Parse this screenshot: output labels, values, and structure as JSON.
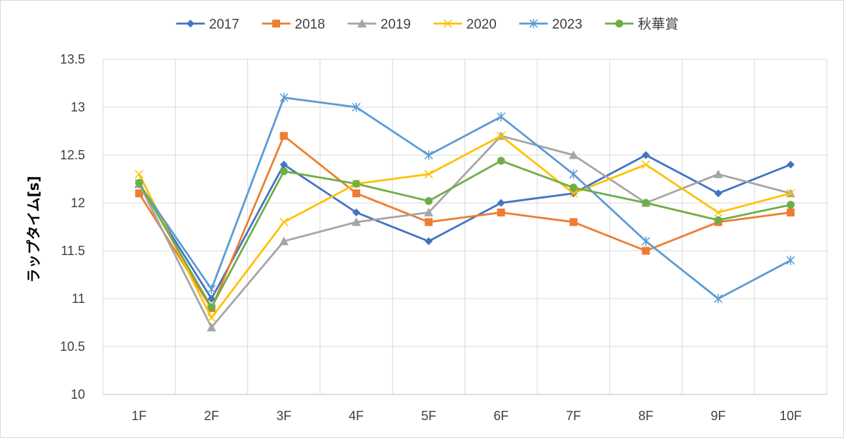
{
  "chart_data": {
    "type": "line",
    "title": "",
    "xlabel": "",
    "ylabel": "ラップタイム[s]",
    "categories": [
      "1F",
      "2F",
      "3F",
      "4F",
      "5F",
      "6F",
      "7F",
      "8F",
      "9F",
      "10F"
    ],
    "ylim": [
      10,
      13.5
    ],
    "yticks": [
      10,
      10.5,
      11,
      11.5,
      12,
      12.5,
      13,
      13.5
    ],
    "ytick_labels": [
      "10",
      "10.5",
      "11",
      "11.5",
      "12",
      "12.5",
      "13",
      "13.5"
    ],
    "grid": true,
    "legend_position": "top",
    "series": [
      {
        "name": "2017",
        "color": "#4472C4",
        "marker": "diamond",
        "values": [
          12.2,
          11.0,
          12.4,
          11.9,
          11.6,
          12.0,
          12.1,
          12.5,
          12.1,
          12.4
        ]
      },
      {
        "name": "2018",
        "color": "#ED7D31",
        "marker": "square",
        "values": [
          12.1,
          10.9,
          12.7,
          12.1,
          11.8,
          11.9,
          11.8,
          11.5,
          11.8,
          11.9
        ]
      },
      {
        "name": "2019",
        "color": "#A5A5A5",
        "marker": "triangle",
        "values": [
          12.2,
          10.7,
          11.6,
          11.8,
          11.9,
          12.7,
          12.5,
          12.0,
          12.3,
          12.1
        ]
      },
      {
        "name": "2020",
        "color": "#FFC000",
        "marker": "x",
        "values": [
          12.3,
          10.8,
          11.8,
          12.2,
          12.3,
          12.7,
          12.1,
          12.4,
          11.9,
          12.1
        ]
      },
      {
        "name": "2023",
        "color": "#5B9BD5",
        "marker": "star",
        "values": [
          12.2,
          11.1,
          13.1,
          13.0,
          12.5,
          12.9,
          12.3,
          11.6,
          11.0,
          11.4
        ]
      },
      {
        "name": "秋華賞",
        "color": "#70AD47",
        "marker": "circle",
        "values": [
          12.21,
          10.91,
          12.33,
          12.2,
          12.02,
          12.44,
          12.16,
          12.0,
          11.82,
          11.98
        ]
      }
    ]
  }
}
